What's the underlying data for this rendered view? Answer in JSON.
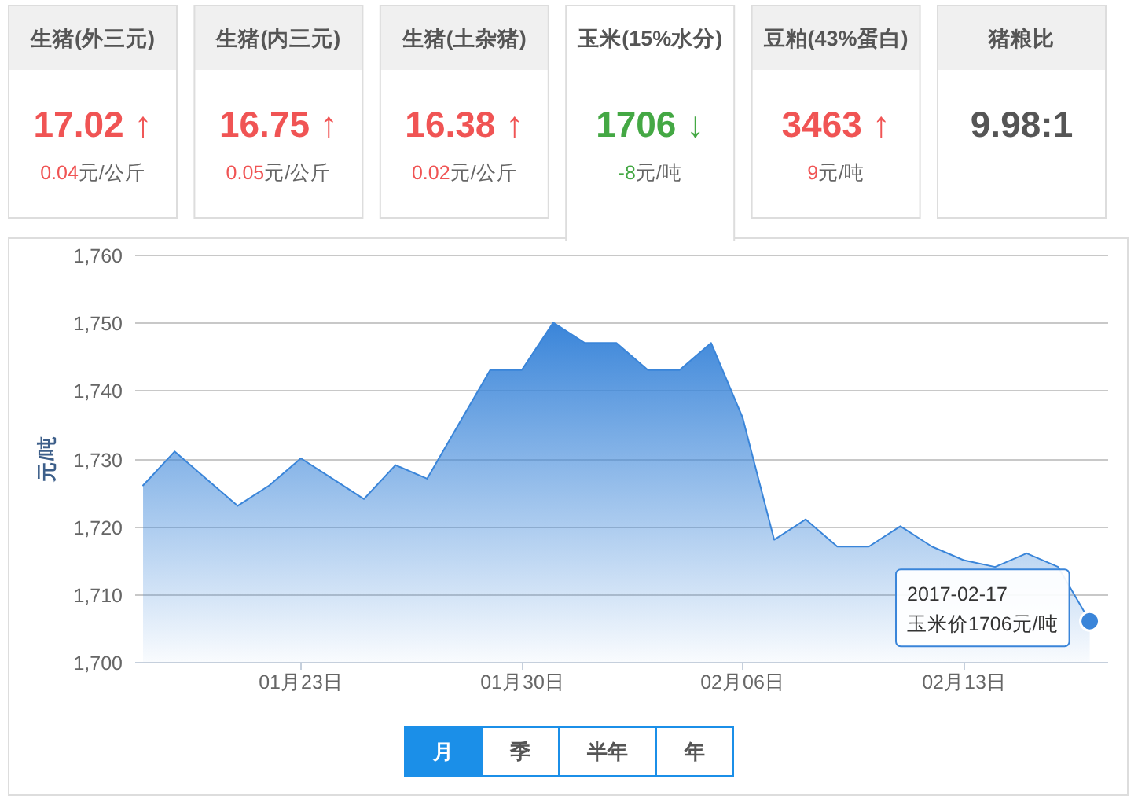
{
  "chart_data": [
    {
      "type": "other",
      "title": "生猪(外三元)",
      "annotations": [
        "17.02 ↑",
        "0.04",
        "元/公斤"
      ],
      "color": "#f05454"
    },
    {
      "type": "other",
      "title": "生猪(内三元)",
      "annotations": [
        "16.75 ↑",
        "0.05",
        "元/公斤"
      ],
      "color": "#f05454"
    },
    {
      "type": "other",
      "title": "生猪(土杂猪)",
      "annotations": [
        "16.38 ↑",
        "0.02",
        "元/公斤"
      ],
      "color": "#f05454"
    },
    {
      "type": "other",
      "title": "玉米(15%水分)",
      "annotations": [
        "1706 ↓",
        "-8",
        "元/吨"
      ],
      "color": "#44a844"
    },
    {
      "type": "other",
      "title": "豆粕(43%蛋白)",
      "annotations": [
        "3463 ↑",
        "9",
        "元/吨"
      ],
      "color": "#f05454"
    },
    {
      "type": "other",
      "title": "猪粮比",
      "annotations": [
        "9.98:1"
      ],
      "color": "#555555"
    },
    {
      "type": "area",
      "x": [
        "2017-01-18",
        "2017-01-19",
        "2017-01-20",
        "2017-01-21",
        "2017-01-22",
        "2017-01-23",
        "2017-01-24",
        "2017-01-25",
        "2017-01-26",
        "2017-01-27",
        "2017-01-28",
        "2017-01-29",
        "2017-01-30",
        "2017-01-31",
        "2017-02-01",
        "2017-02-02",
        "2017-02-03",
        "2017-02-04",
        "2017-02-05",
        "2017-02-06",
        "2017-02-07",
        "2017-02-08",
        "2017-02-09",
        "2017-02-10",
        "2017-02-11",
        "2017-02-12",
        "2017-02-13",
        "2017-02-14",
        "2017-02-15",
        "2017-02-16",
        "2017-02-17"
      ],
      "values": [
        1726,
        1731,
        1727,
        1723,
        1726,
        1730,
        1727,
        1724,
        1729,
        1727,
        1735,
        1743,
        1743,
        1750,
        1747,
        1747,
        1743,
        1743,
        1747,
        1736,
        1718,
        1721,
        1717,
        1717,
        1720,
        1717,
        1715,
        1714,
        1716,
        1714,
        1706
      ],
      "color": "#3a85d9",
      "xlim": [
        "2017-01-17T18:00",
        "2017-02-17T14:00"
      ],
      "xticks": [
        {
          "value": "2017-01-23",
          "label": "01月23日"
        },
        {
          "value": "2017-01-30",
          "label": "01月30日"
        },
        {
          "value": "2017-02-06",
          "label": "02月06日"
        },
        {
          "value": "2017-02-13",
          "label": "02月13日"
        }
      ],
      "ylim": [
        1700,
        1760
      ],
      "yticks": [
        {
          "value": 1700,
          "label": "1,700"
        },
        {
          "value": 1710,
          "label": "1,710"
        },
        {
          "value": 1720,
          "label": "1,720"
        },
        {
          "value": 1730,
          "label": "1,730"
        },
        {
          "value": 1740,
          "label": "1,740"
        },
        {
          "value": 1750,
          "label": "1,750"
        },
        {
          "value": 1760,
          "label": "1,760"
        }
      ],
      "ylabel": "元/吨",
      "grid": "y",
      "annotations": [
        {
          "text": "2017-02-17\n玉米价1706元/吨",
          "x": "2017-02-17",
          "y": 1706
        },
        "月",
        "季",
        "半年",
        "年"
      ]
    }
  ]
}
